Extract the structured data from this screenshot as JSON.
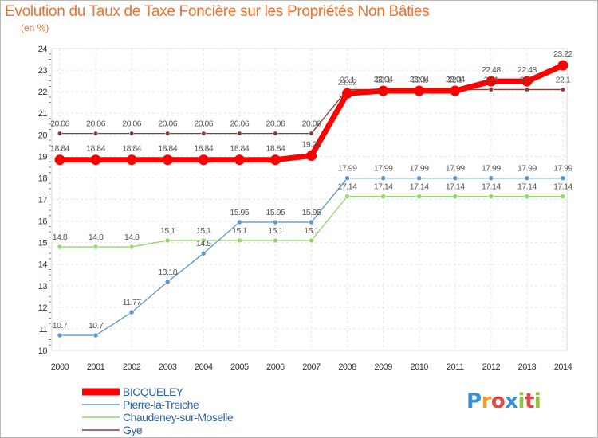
{
  "chart_data": {
    "type": "line",
    "title": "Evolution du Taux de Taxe Foncière sur les Propriétés Non Bâties",
    "ylabel": "(en %)",
    "xlabel": "",
    "ylim": [
      10,
      24
    ],
    "yticks": [
      "10",
      "11",
      "12",
      "13",
      "14",
      "15",
      "16",
      "17",
      "18",
      "19",
      "20",
      "21",
      "22",
      "23",
      "24"
    ],
    "x": [
      "2000",
      "2001",
      "2002",
      "2003",
      "2004",
      "2005",
      "2006",
      "2007",
      "2008",
      "2009",
      "2010",
      "2011",
      "2012",
      "2013",
      "2014"
    ],
    "series": [
      {
        "name": "BICQUELEY",
        "color": "#ff0000",
        "values": [
          18.84,
          18.84,
          18.84,
          18.84,
          18.84,
          18.84,
          18.84,
          19.03,
          21.92,
          22.04,
          22.04,
          22.04,
          22.48,
          22.48,
          23.22
        ],
        "labels": [
          "18.84",
          "18.84",
          "18.84",
          "18.84",
          "18.84",
          "18.84",
          "18.84",
          "19.03",
          "21.92",
          "22.04",
          "22.04",
          "22.04",
          "22.48",
          "22.48",
          "23.22"
        ]
      },
      {
        "name": "Pierre-la-Treiche",
        "color": "#5b97cb",
        "values": [
          10.7,
          10.7,
          11.77,
          13.18,
          14.5,
          15.95,
          15.95,
          15.95,
          17.99,
          17.99,
          17.99,
          17.99,
          17.99,
          17.99,
          17.99
        ],
        "labels": [
          "10.7",
          "10.7",
          "11.77",
          "13.18",
          "14.5",
          "15.95",
          "15.95",
          "15.95",
          "17.99",
          "17.99",
          "17.99",
          "17.99",
          "17.99",
          "17.99",
          "17.99"
        ]
      },
      {
        "name": "Chaudeney-sur-Moselle",
        "color": "#93d66a",
        "values": [
          14.8,
          14.8,
          14.8,
          15.1,
          15.1,
          15.1,
          15.1,
          15.1,
          17.14,
          17.14,
          17.14,
          17.14,
          17.14,
          17.14,
          17.14
        ],
        "labels": [
          "14.8",
          "14.8",
          "14.8",
          "15.1",
          "15.1",
          "15.1",
          "15.1",
          "15.1",
          "17.14",
          "17.14",
          "17.14",
          "17.14",
          "17.14",
          "17.14",
          "17.14"
        ]
      },
      {
        "name": "Gye",
        "color": "#8b3a3a",
        "values": [
          20.06,
          20.06,
          20.06,
          20.06,
          20.06,
          20.06,
          20.06,
          20.06,
          22.1,
          22.1,
          22.1,
          22.1,
          22.1,
          22.1,
          22.1
        ],
        "labels": [
          "20.06",
          "20.06",
          "20.06",
          "20.06",
          "20.06",
          "20.06",
          "20.06",
          "20.06",
          "22.1",
          "22.1",
          "22.1",
          "22.1",
          "22.1",
          "22.1",
          "22.1"
        ]
      }
    ],
    "legend_position": "bottom-left",
    "grid": true
  },
  "logo": {
    "letters": [
      "P",
      "r",
      "o",
      "x",
      "i",
      "t",
      "i"
    ],
    "colors": [
      "#3a8fd8",
      "#f0a030",
      "#e04848",
      "#3a8fd8",
      "#90c040",
      "#e04848",
      "#90c040"
    ]
  }
}
